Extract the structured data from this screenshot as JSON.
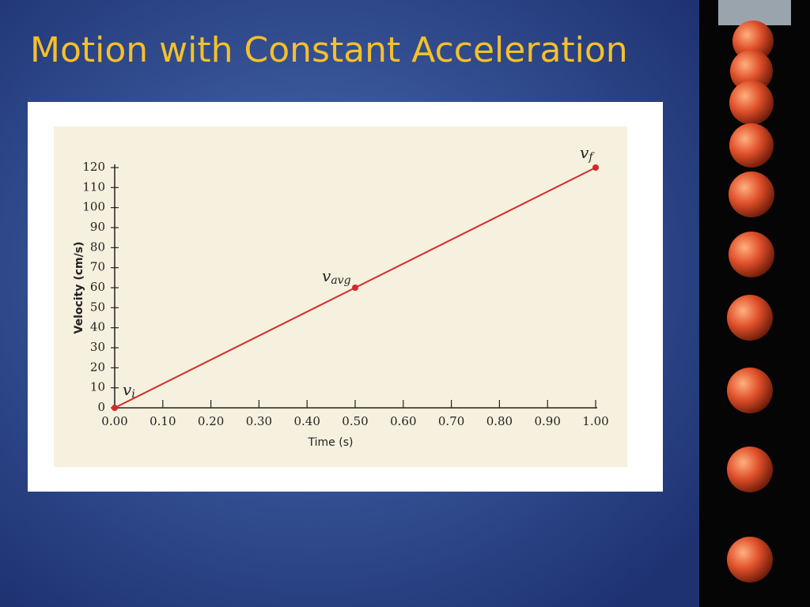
{
  "slide": {
    "title": "Motion with Constant Acceleration"
  },
  "chart_data": {
    "type": "line",
    "x": [
      0,
      0.5,
      1
    ],
    "values": [
      0,
      60,
      120
    ],
    "color": "#d42a2a",
    "point_labels": [
      {
        "symbol": "v",
        "subscript": "i"
      },
      {
        "symbol": "v",
        "subscript": "avg"
      },
      {
        "symbol": "v",
        "subscript": "f"
      }
    ],
    "x_label": "Time (s)",
    "y_label": "Velocity (cm/s)",
    "xlim": [
      0,
      1
    ],
    "ylim": [
      0,
      120
    ],
    "xticks": [
      {
        "value": 0,
        "label": "0.00"
      },
      {
        "value": 0.1,
        "label": "0.10"
      },
      {
        "value": 0.2,
        "label": "0.20"
      },
      {
        "value": 0.3,
        "label": "0.30"
      },
      {
        "value": 0.4,
        "label": "0.40"
      },
      {
        "value": 0.5,
        "label": "0.50"
      },
      {
        "value": 0.6,
        "label": "0.60"
      },
      {
        "value": 0.7,
        "label": "0.70"
      },
      {
        "value": 0.8,
        "label": "0.80"
      },
      {
        "value": 0.9,
        "label": "0.90"
      },
      {
        "value": 1,
        "label": "1.00"
      }
    ],
    "yticks": [
      0,
      10,
      20,
      30,
      40,
      50,
      60,
      70,
      80,
      90,
      100,
      110,
      120
    ]
  }
}
